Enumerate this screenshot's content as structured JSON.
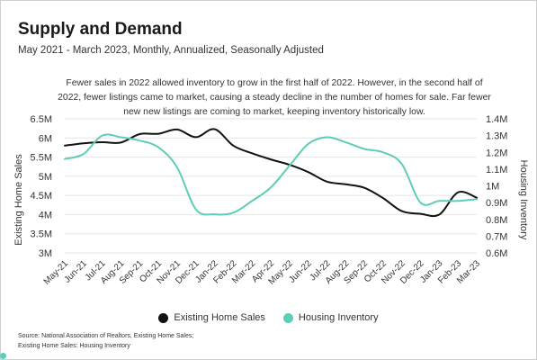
{
  "title": "Supply and Demand",
  "subtitle": "May 2021 - March 2023, Monthly, Annualized, Seasonally Adjusted",
  "annotation": "Fewer sales in 2022 allowed inventory to grow in the first half of 2022. However, in the second half of 2022, fewer listings came to market, causing a steady decline in the number of homes for sale. Far fewer new new listings are coming to market, keeping inventory historically low.",
  "source_line1": "Source:  National Association of Realtors, Existing Home Sales;",
  "source_line2": "Existing Home Sales: Housing Inventory",
  "colors": {
    "sales": "#111111",
    "inventory": "#5dcdb8",
    "grid": "#e4e4e4"
  },
  "chart_data": {
    "type": "line",
    "title": "Supply and Demand",
    "ylabel": "Existing Home Sales",
    "y2label": "Housing Inventory",
    "ylim": [
      3000000,
      6500000
    ],
    "y2lim": [
      600000,
      1400000
    ],
    "y_ticks": [
      "6.5M",
      "6M",
      "5.5M",
      "5M",
      "4.5M",
      "4M",
      "3.5M",
      "3M"
    ],
    "y2_ticks": [
      "1.4M",
      "1.3M",
      "1.2M",
      "1.1M",
      "1M",
      "0.9M",
      "0.8M",
      "0.7M",
      "0.6M"
    ],
    "categories": [
      "May-21",
      "Jun-21",
      "Jul-21",
      "Aug-21",
      "Sep-21",
      "Oct-21",
      "Nov-21",
      "Dec-21",
      "Jan-22",
      "Feb-22",
      "Mar-22",
      "Apr-22",
      "May-22",
      "Jun-22",
      "Jul-22",
      "Aug-22",
      "Sep-22",
      "Oct-22",
      "Nov-22",
      "Dec-22",
      "Jan-23",
      "Feb-23",
      "Mar-23"
    ],
    "series": [
      {
        "name": "Existing Home Sales",
        "axis": "left",
        "values": [
          5800000,
          5860000,
          5890000,
          5880000,
          6100000,
          6110000,
          6220000,
          6020000,
          6230000,
          5800000,
          5600000,
          5440000,
          5300000,
          5110000,
          4860000,
          4790000,
          4700000,
          4430000,
          4090000,
          4020000,
          4000000,
          4580000,
          4440000
        ]
      },
      {
        "name": "Housing Inventory",
        "axis": "right",
        "values": [
          1160000,
          1190000,
          1300000,
          1290000,
          1270000,
          1230000,
          1110000,
          860000,
          830000,
          840000,
          910000,
          990000,
          1120000,
          1250000,
          1290000,
          1260000,
          1220000,
          1200000,
          1130000,
          900000,
          910000,
          910000,
          920000
        ]
      }
    ],
    "legend_position": "bottom",
    "grid": true
  }
}
